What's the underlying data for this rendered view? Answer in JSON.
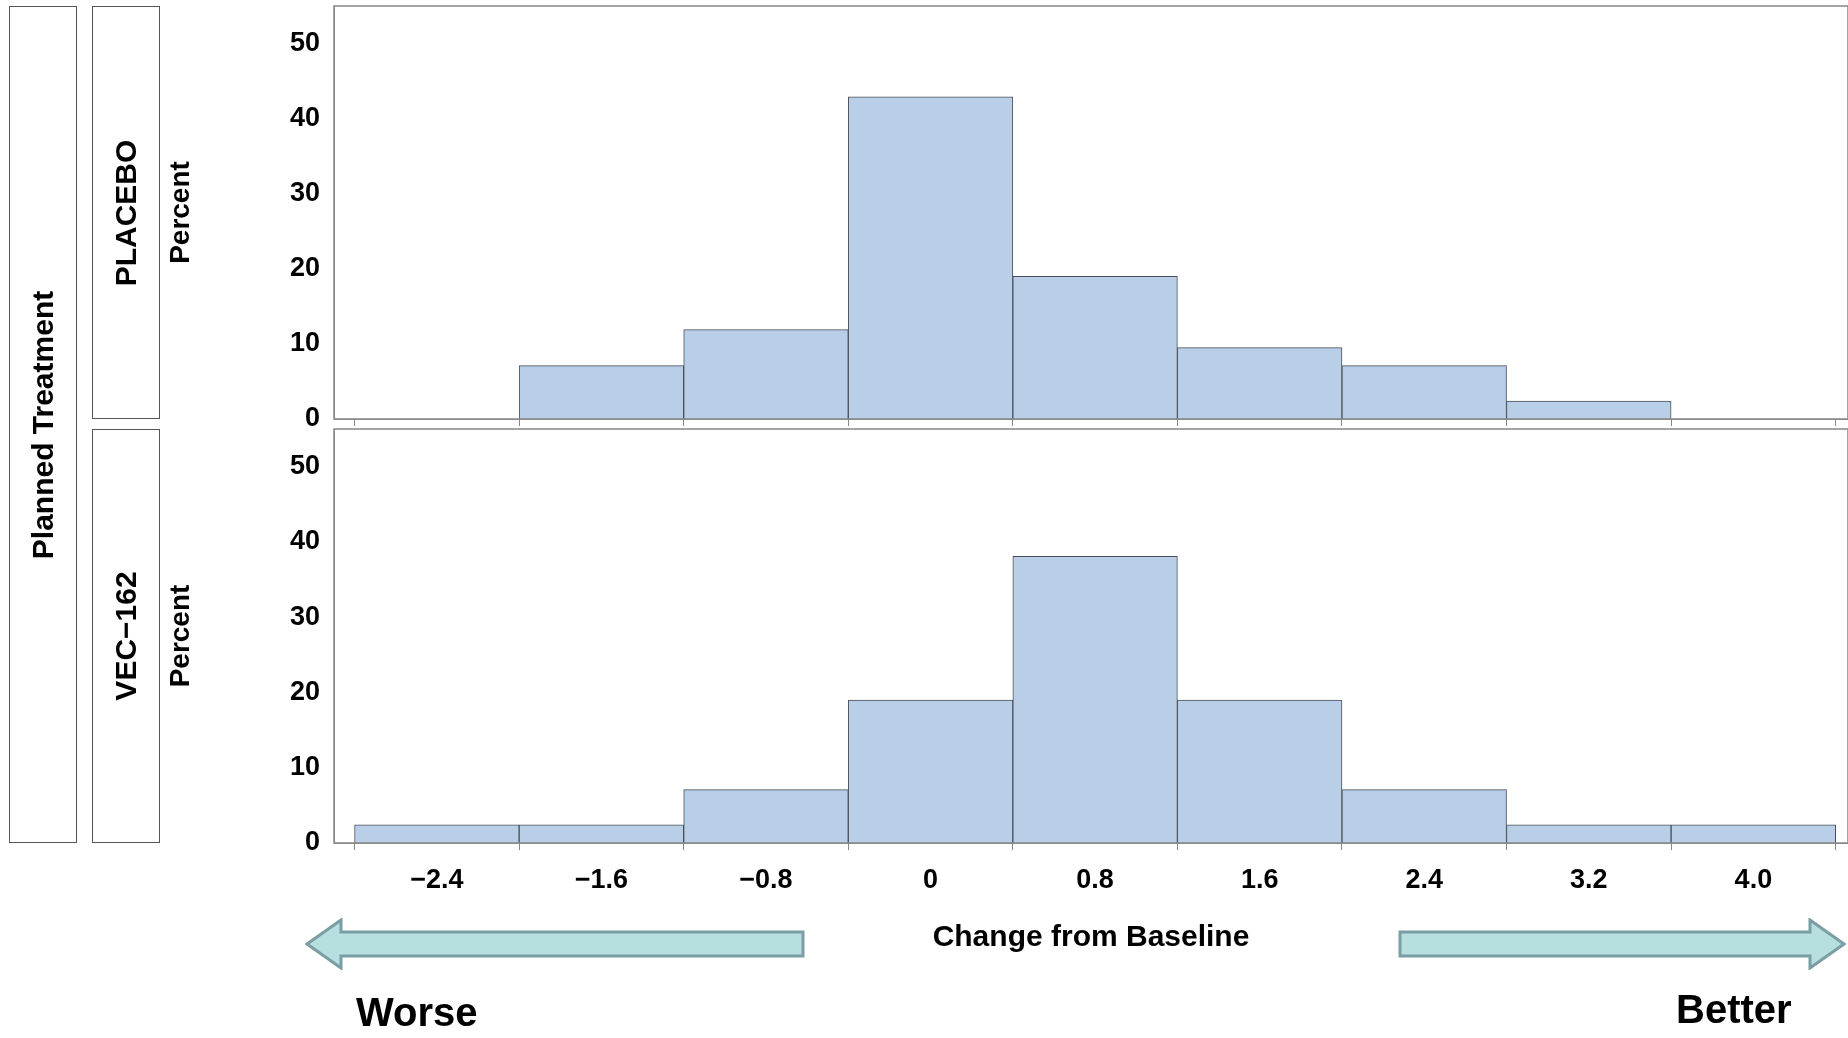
{
  "chart_data": [
    {
      "type": "histogram",
      "title": "PLACEBO",
      "ylabel": "Percent",
      "annotations": [
        "Planned Treatment"
      ],
      "bins": [
        -2.8,
        -2.0,
        -1.2,
        -0.4,
        0.4,
        1.2,
        2.0,
        2.8,
        3.6,
        4.4
      ],
      "values": [
        0,
        7.1,
        11.9,
        42.9,
        19.0,
        9.5,
        7.1,
        2.4,
        0
      ],
      "color": "#b9cfe7",
      "xlim": [
        -2.9,
        4.46
      ],
      "xticks": [
        -2.4,
        -1.6,
        -0.8,
        0,
        0.8,
        1.6,
        2.4,
        3.2,
        4
      ],
      "ylim": [
        0,
        55
      ],
      "yticks": [
        0,
        10,
        20,
        30,
        40,
        50
      ],
      "tick_labels": "y"
    },
    {
      "type": "histogram",
      "title": "VEC−162",
      "xlabel": "Change from Baseline",
      "ylabel": "Percent",
      "annotations": [
        "Worse",
        "Better"
      ],
      "bins": [
        -2.8,
        -2.0,
        -1.2,
        -0.4,
        0.4,
        1.2,
        2.0,
        2.8,
        3.6,
        4.4
      ],
      "values": [
        2.4,
        2.4,
        7.1,
        19.0,
        38.1,
        19.0,
        7.1,
        2.4,
        2.4
      ],
      "color": "#b9cfe7",
      "xlim": [
        -2.9,
        4.46
      ],
      "xticks": [
        {
          "value": -2.4,
          "label": "−2.4"
        },
        {
          "value": -1.6,
          "label": "−1.6"
        },
        {
          "value": -0.8,
          "label": "−0.8"
        },
        0,
        0.8,
        1.6,
        2.4,
        3.2,
        {
          "value": 4,
          "label": "4.0"
        }
      ],
      "ylim": [
        0,
        55
      ],
      "yticks": [
        0,
        10,
        20,
        30,
        40,
        50
      ]
    }
  ]
}
